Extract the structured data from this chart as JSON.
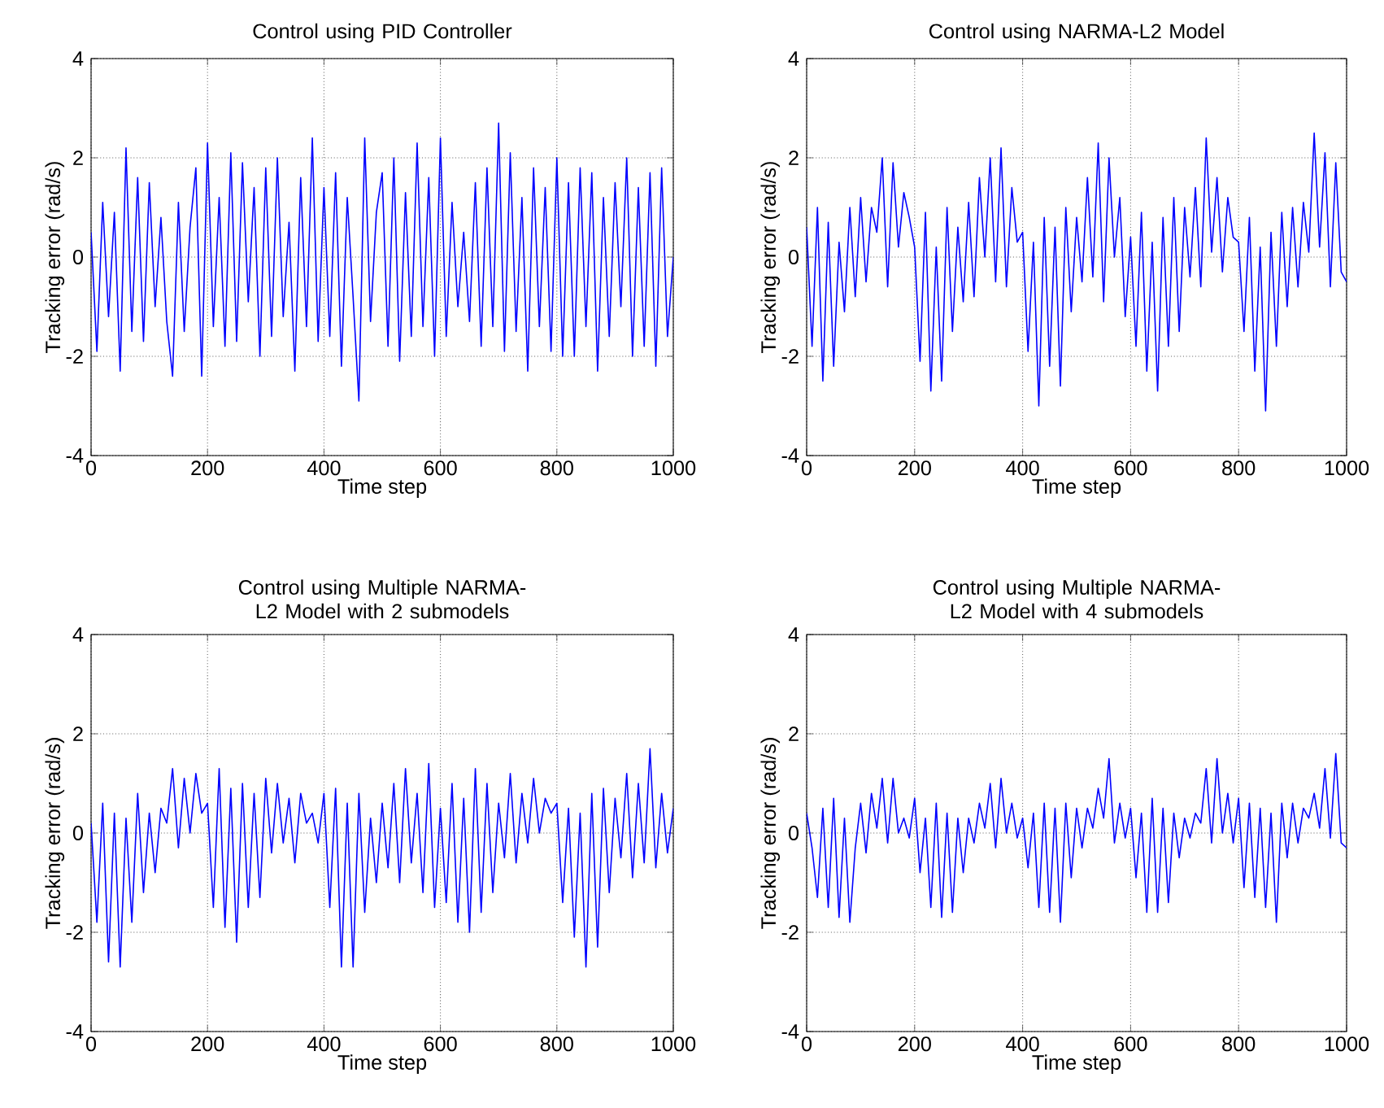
{
  "chart_data": [
    {
      "type": "line",
      "title": "Control using PID Controller",
      "xlabel": "Time step",
      "ylabel": "Tracking error (rad/s)",
      "x": [
        0,
        10,
        20,
        30,
        40,
        50,
        60,
        70,
        80,
        90,
        100,
        110,
        120,
        130,
        140,
        150,
        160,
        170,
        180,
        190,
        200,
        210,
        220,
        230,
        240,
        250,
        260,
        270,
        280,
        290,
        300,
        310,
        320,
        330,
        340,
        350,
        360,
        370,
        380,
        390,
        400,
        410,
        420,
        430,
        440,
        450,
        460,
        470,
        480,
        490,
        500,
        510,
        520,
        530,
        540,
        550,
        560,
        570,
        580,
        590,
        600,
        610,
        620,
        630,
        640,
        650,
        660,
        670,
        680,
        690,
        700,
        710,
        720,
        730,
        740,
        750,
        760,
        770,
        780,
        790,
        800,
        810,
        820,
        830,
        840,
        850,
        860,
        870,
        880,
        890,
        900,
        910,
        920,
        930,
        940,
        950,
        960,
        970,
        980,
        990,
        1000
      ],
      "series": [
        {
          "color": "#0000ff",
          "values": [
            0.5,
            -1.9,
            1.1,
            -1.2,
            0.9,
            -2.3,
            2.2,
            -1.5,
            1.6,
            -1.7,
            1.5,
            -1.0,
            0.8,
            -1.3,
            -2.4,
            1.1,
            -1.5,
            0.6,
            1.8,
            -2.4,
            2.3,
            -1.4,
            1.2,
            -1.8,
            2.1,
            -1.7,
            1.9,
            -0.9,
            1.4,
            -2.0,
            1.8,
            -1.6,
            2.0,
            -1.2,
            0.7,
            -2.3,
            1.6,
            -1.4,
            2.4,
            -1.7,
            1.4,
            -1.6,
            1.7,
            -2.2,
            1.2,
            -0.8,
            -2.9,
            2.4,
            -1.3,
            0.9,
            1.7,
            -1.8,
            2.0,
            -2.1,
            1.3,
            -1.6,
            2.3,
            -1.4,
            1.6,
            -2.0,
            2.4,
            -1.6,
            1.1,
            -1.0,
            0.5,
            -1.3,
            1.5,
            -1.8,
            1.8,
            -1.4,
            2.7,
            -1.9,
            2.1,
            -1.5,
            1.2,
            -2.3,
            1.8,
            -1.4,
            1.4,
            -1.9,
            2.0,
            -2.0,
            1.5,
            -2.0,
            1.8,
            -1.4,
            1.7,
            -2.3,
            1.2,
            -1.6,
            1.5,
            -1.0,
            2.0,
            -2.0,
            1.4,
            -1.8,
            1.7,
            -2.2,
            1.8,
            -1.6,
            0.0
          ]
        }
      ],
      "xlim": [
        0,
        1000
      ],
      "ylim": [
        -4,
        4
      ],
      "xticks": [
        0,
        200,
        400,
        600,
        800,
        1000
      ],
      "yticks": [
        -4,
        -2,
        0,
        2,
        4
      ],
      "grid": true
    },
    {
      "type": "line",
      "title": "Control using NARMA-L2 Model",
      "xlabel": "Time step",
      "ylabel": "Tracking error (rad/s)",
      "x": [
        0,
        10,
        20,
        30,
        40,
        50,
        60,
        70,
        80,
        90,
        100,
        110,
        120,
        130,
        140,
        150,
        160,
        170,
        180,
        190,
        200,
        210,
        220,
        230,
        240,
        250,
        260,
        270,
        280,
        290,
        300,
        310,
        320,
        330,
        340,
        350,
        360,
        370,
        380,
        390,
        400,
        410,
        420,
        430,
        440,
        450,
        460,
        470,
        480,
        490,
        500,
        510,
        520,
        530,
        540,
        550,
        560,
        570,
        580,
        590,
        600,
        610,
        620,
        630,
        640,
        650,
        660,
        670,
        680,
        690,
        700,
        710,
        720,
        730,
        740,
        750,
        760,
        770,
        780,
        790,
        800,
        810,
        820,
        830,
        840,
        850,
        860,
        870,
        880,
        890,
        900,
        910,
        920,
        930,
        940,
        950,
        960,
        970,
        980,
        990,
        1000
      ],
      "series": [
        {
          "color": "#0000ff",
          "values": [
            0.6,
            -1.8,
            1.0,
            -2.5,
            0.7,
            -2.2,
            0.3,
            -1.1,
            1.0,
            -0.8,
            1.2,
            -0.5,
            1.0,
            0.5,
            2.0,
            -0.6,
            1.9,
            0.2,
            1.3,
            0.8,
            0.2,
            -2.1,
            0.9,
            -2.7,
            0.2,
            -2.5,
            1.0,
            -1.5,
            0.6,
            -0.9,
            1.1,
            -0.8,
            1.6,
            0.0,
            2.0,
            -0.5,
            2.2,
            -0.6,
            1.4,
            0.3,
            0.5,
            -1.9,
            0.3,
            -3.0,
            0.8,
            -2.2,
            0.6,
            -2.6,
            1.0,
            -1.1,
            0.8,
            -0.5,
            1.6,
            -0.4,
            2.3,
            -0.9,
            2.0,
            0.0,
            1.2,
            -1.2,
            0.4,
            -1.8,
            0.9,
            -2.3,
            0.3,
            -2.7,
            0.8,
            -1.8,
            1.2,
            -1.5,
            1.0,
            -0.4,
            1.4,
            -0.6,
            2.4,
            0.1,
            1.6,
            -0.3,
            1.2,
            0.4,
            0.3,
            -1.5,
            0.8,
            -2.3,
            0.2,
            -3.1,
            0.5,
            -1.8,
            0.9,
            -1.0,
            1.0,
            -0.6,
            1.1,
            0.1,
            2.5,
            0.2,
            2.1,
            -0.6,
            1.9,
            -0.3,
            -0.5
          ]
        }
      ],
      "xlim": [
        0,
        1000
      ],
      "ylim": [
        -4,
        4
      ],
      "xticks": [
        0,
        200,
        400,
        600,
        800,
        1000
      ],
      "yticks": [
        -4,
        -2,
        0,
        2,
        4
      ],
      "grid": true
    },
    {
      "type": "line",
      "title": "Control using Multiple NARMA-L2 Model with 2 submodels",
      "xlabel": "Time step",
      "ylabel": "Tracking error (rad/s)",
      "x": [
        0,
        10,
        20,
        30,
        40,
        50,
        60,
        70,
        80,
        90,
        100,
        110,
        120,
        130,
        140,
        150,
        160,
        170,
        180,
        190,
        200,
        210,
        220,
        230,
        240,
        250,
        260,
        270,
        280,
        290,
        300,
        310,
        320,
        330,
        340,
        350,
        360,
        370,
        380,
        390,
        400,
        410,
        420,
        430,
        440,
        450,
        460,
        470,
        480,
        490,
        500,
        510,
        520,
        530,
        540,
        550,
        560,
        570,
        580,
        590,
        600,
        610,
        620,
        630,
        640,
        650,
        660,
        670,
        680,
        690,
        700,
        710,
        720,
        730,
        740,
        750,
        760,
        770,
        780,
        790,
        800,
        810,
        820,
        830,
        840,
        850,
        860,
        870,
        880,
        890,
        900,
        910,
        920,
        930,
        940,
        950,
        960,
        970,
        980,
        990,
        1000
      ],
      "series": [
        {
          "color": "#0000ff",
          "values": [
            0.2,
            -1.8,
            0.6,
            -2.6,
            0.4,
            -2.7,
            0.3,
            -1.8,
            0.8,
            -1.2,
            0.4,
            -0.8,
            0.5,
            0.2,
            1.3,
            -0.3,
            1.1,
            0.0,
            1.2,
            0.4,
            0.6,
            -1.5,
            1.3,
            -1.9,
            0.9,
            -2.2,
            1.0,
            -1.5,
            0.8,
            -1.3,
            1.1,
            -0.4,
            1.0,
            -0.2,
            0.7,
            -0.6,
            0.8,
            0.2,
            0.4,
            -0.2,
            0.8,
            -1.5,
            0.9,
            -2.7,
            0.6,
            -2.7,
            0.8,
            -1.6,
            0.3,
            -1.0,
            0.6,
            -0.7,
            1.0,
            -1.0,
            1.3,
            -0.6,
            0.8,
            -1.2,
            1.4,
            -1.5,
            0.5,
            -1.4,
            1.0,
            -1.8,
            0.7,
            -2.0,
            1.3,
            -1.6,
            1.0,
            -1.2,
            0.6,
            -0.5,
            1.2,
            -0.6,
            0.8,
            -0.2,
            1.1,
            0.0,
            0.7,
            0.4,
            0.6,
            -1.4,
            0.5,
            -2.1,
            0.4,
            -2.7,
            0.8,
            -2.3,
            0.9,
            -1.2,
            0.7,
            -0.5,
            1.2,
            -0.9,
            1.0,
            -0.6,
            1.7,
            -0.7,
            0.8,
            -0.4,
            0.5
          ]
        }
      ],
      "xlim": [
        0,
        1000
      ],
      "ylim": [
        -4,
        4
      ],
      "xticks": [
        0,
        200,
        400,
        600,
        800,
        1000
      ],
      "yticks": [
        -4,
        -2,
        0,
        2,
        4
      ],
      "grid": true
    },
    {
      "type": "line",
      "title": "Control using Multiple NARMA-L2 Model with 4 submodels",
      "xlabel": "Time step",
      "ylabel": "Tracking error (rad/s)",
      "x": [
        0,
        10,
        20,
        30,
        40,
        50,
        60,
        70,
        80,
        90,
        100,
        110,
        120,
        130,
        140,
        150,
        160,
        170,
        180,
        190,
        200,
        210,
        220,
        230,
        240,
        250,
        260,
        270,
        280,
        290,
        300,
        310,
        320,
        330,
        340,
        350,
        360,
        370,
        380,
        390,
        400,
        410,
        420,
        430,
        440,
        450,
        460,
        470,
        480,
        490,
        500,
        510,
        520,
        530,
        540,
        550,
        560,
        570,
        580,
        590,
        600,
        610,
        620,
        630,
        640,
        650,
        660,
        670,
        680,
        690,
        700,
        710,
        720,
        730,
        740,
        750,
        760,
        770,
        780,
        790,
        800,
        810,
        820,
        830,
        840,
        850,
        860,
        870,
        880,
        890,
        900,
        910,
        920,
        930,
        940,
        950,
        960,
        970,
        980,
        990,
        1000
      ],
      "series": [
        {
          "color": "#0000ff",
          "values": [
            0.4,
            -0.3,
            -1.3,
            0.5,
            -1.5,
            0.7,
            -1.7,
            0.3,
            -1.8,
            -0.3,
            0.6,
            -0.4,
            0.8,
            0.1,
            1.1,
            -0.2,
            1.1,
            0.0,
            0.3,
            -0.1,
            0.7,
            -0.8,
            0.3,
            -1.5,
            0.6,
            -1.7,
            0.4,
            -1.6,
            0.3,
            -0.8,
            0.3,
            -0.2,
            0.6,
            0.1,
            1.0,
            -0.3,
            1.1,
            0.0,
            0.6,
            -0.1,
            0.3,
            -0.7,
            0.4,
            -1.5,
            0.6,
            -1.6,
            0.5,
            -1.8,
            0.6,
            -0.9,
            0.5,
            -0.3,
            0.5,
            0.1,
            0.9,
            0.3,
            1.5,
            -0.2,
            0.6,
            -0.1,
            0.5,
            -0.9,
            0.4,
            -1.6,
            0.7,
            -1.6,
            0.5,
            -1.4,
            0.4,
            -0.5,
            0.3,
            -0.1,
            0.4,
            0.2,
            1.3,
            -0.2,
            1.5,
            0.0,
            0.8,
            -0.2,
            0.7,
            -1.1,
            0.6,
            -1.3,
            0.5,
            -1.5,
            0.4,
            -1.8,
            0.6,
            -0.5,
            0.6,
            -0.2,
            0.5,
            0.3,
            0.8,
            0.1,
            1.3,
            -0.1,
            1.6,
            -0.2,
            -0.3
          ]
        }
      ],
      "xlim": [
        0,
        1000
      ],
      "ylim": [
        -4,
        4
      ],
      "xticks": [
        0,
        200,
        400,
        600,
        800,
        1000
      ],
      "yticks": [
        -4,
        -2,
        0,
        2,
        4
      ],
      "grid": true
    }
  ]
}
